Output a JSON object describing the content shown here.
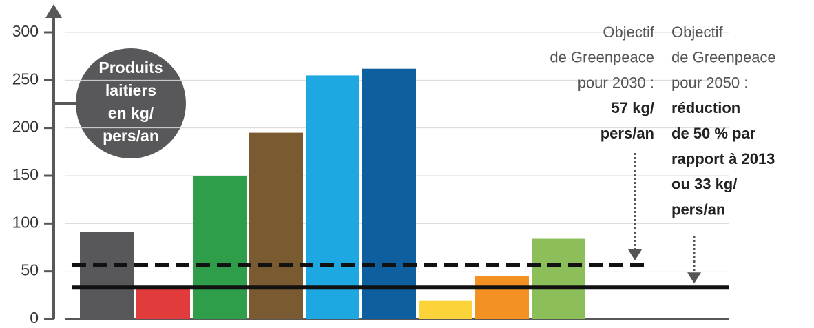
{
  "chart_data": {
    "type": "bar",
    "categories": [
      null,
      null,
      null,
      null,
      null,
      null,
      null,
      null,
      null
    ],
    "values": [
      91,
      31,
      150,
      195,
      255,
      262,
      19,
      45,
      84
    ],
    "colors": [
      "#58585a",
      "#e23b3b",
      "#2e9e4a",
      "#7a5a30",
      "#1ea8e2",
      "#0d5fa0",
      "#fcd43a",
      "#f39222",
      "#8cbf5a"
    ],
    "ylim": [
      0,
      300
    ],
    "yticks": [
      0,
      50,
      100,
      150,
      200,
      250,
      300
    ],
    "grid": true,
    "axis_label": [
      "Produits",
      "laitiers",
      "en kg/",
      "pers/an"
    ],
    "reference_lines": [
      {
        "value": 57,
        "style": "dashed"
      },
      {
        "value": 33,
        "style": "solid"
      }
    ],
    "annotations": [
      {
        "lines": [
          {
            "text": "Objectif",
            "bold": false
          },
          {
            "text": "de Greenpeace",
            "bold": false
          },
          {
            "text": "pour 2030 :",
            "bold": false
          },
          {
            "text": "57 kg/",
            "bold": true
          },
          {
            "text": "pers/an",
            "bold": true
          }
        ]
      },
      {
        "lines": [
          {
            "text": "Objectif",
            "bold": false
          },
          {
            "text": "de Greenpeace",
            "bold": false
          },
          {
            "text": "pour 2050 :",
            "bold": false
          },
          {
            "text": "réduction",
            "bold": true
          },
          {
            "text": "de 50 % par",
            "bold": true
          },
          {
            "text": "rapport à 2013",
            "bold": true
          },
          {
            "text": "ou 33 kg/",
            "bold": true
          },
          {
            "text": "pers/an",
            "bold": true
          }
        ]
      }
    ]
  }
}
